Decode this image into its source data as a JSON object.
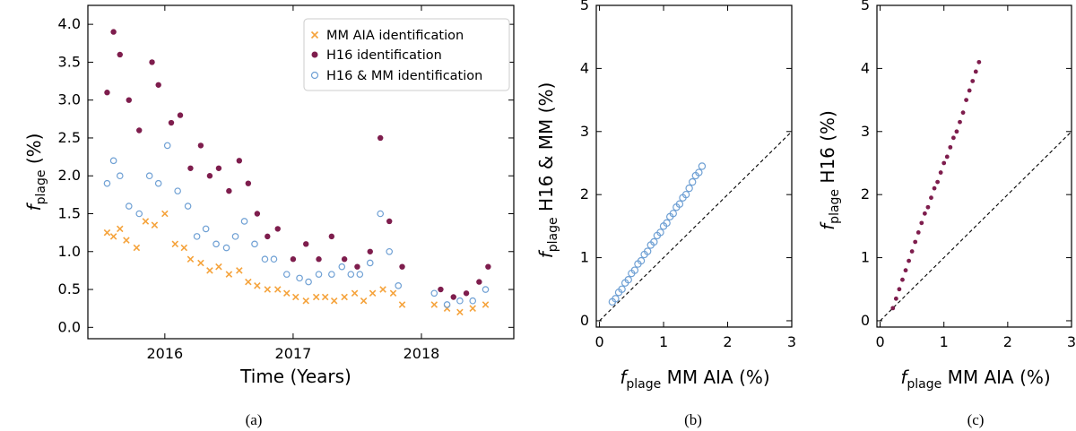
{
  "colors": {
    "orange": "#f5a33c",
    "purple": "#7e1d4d",
    "blue": "#6fa0d4"
  },
  "chart_data": [
    {
      "id": "a",
      "type": "scatter",
      "caption": "(a)",
      "ylabel_base": "f",
      "ylabel_sub": "plage",
      "ylabel_tail": " (%)",
      "xlabel": "Time (Years)",
      "xlim": [
        2015.4,
        2018.72
      ],
      "ylim": [
        -0.15,
        4.25
      ],
      "x_ticks": [
        {
          "value": 2016,
          "label": "2016"
        },
        {
          "value": 2017,
          "label": "2017"
        },
        {
          "value": 2018,
          "label": "2018"
        }
      ],
      "y_ticks": [
        {
          "value": 0.0,
          "label": "0.0"
        },
        {
          "value": 0.5,
          "label": "0.5"
        },
        {
          "value": 1.0,
          "label": "1.0"
        },
        {
          "value": 1.5,
          "label": "1.5"
        },
        {
          "value": 2.0,
          "label": "2.0"
        },
        {
          "value": 2.5,
          "label": "2.5"
        },
        {
          "value": 3.0,
          "label": "3.0"
        },
        {
          "value": 3.5,
          "label": "3.5"
        },
        {
          "value": 4.0,
          "label": "4.0"
        }
      ],
      "legend": [
        {
          "label": "MM AIA identification",
          "marker": "x",
          "color": "#f5a33c"
        },
        {
          "label": "H16 identification",
          "marker": "dot",
          "color": "#7e1d4d"
        },
        {
          "label": "H16 & MM identification",
          "marker": "circle",
          "color": "#6fa0d4"
        }
      ],
      "series": [
        {
          "name": "MM AIA identification",
          "marker": "x",
          "color": "#f5a33c",
          "x": [
            2015.55,
            2015.6,
            2015.65,
            2015.7,
            2015.78,
            2015.85,
            2015.92,
            2016.0,
            2016.08,
            2016.15,
            2016.2,
            2016.28,
            2016.35,
            2016.42,
            2016.5,
            2016.58,
            2016.65,
            2016.72,
            2016.8,
            2016.88,
            2016.95,
            2017.02,
            2017.1,
            2017.18,
            2017.25,
            2017.32,
            2017.4,
            2017.48,
            2017.55,
            2017.62,
            2017.7,
            2017.78,
            2017.85,
            2018.1,
            2018.2,
            2018.3,
            2018.4,
            2018.5
          ],
          "y": [
            1.25,
            1.2,
            1.3,
            1.15,
            1.05,
            1.4,
            1.35,
            1.5,
            1.1,
            1.05,
            0.9,
            0.85,
            0.75,
            0.8,
            0.7,
            0.75,
            0.6,
            0.55,
            0.5,
            0.5,
            0.45,
            0.4,
            0.35,
            0.4,
            0.4,
            0.35,
            0.4,
            0.45,
            0.35,
            0.45,
            0.5,
            0.45,
            0.3,
            0.3,
            0.25,
            0.2,
            0.25,
            0.3
          ]
        },
        {
          "name": "H16 identification",
          "marker": "dot",
          "color": "#7e1d4d",
          "x": [
            2015.55,
            2015.6,
            2015.65,
            2015.72,
            2015.8,
            2015.9,
            2015.95,
            2016.05,
            2016.12,
            2016.2,
            2016.28,
            2016.35,
            2016.42,
            2016.5,
            2016.58,
            2016.65,
            2016.72,
            2016.8,
            2016.88,
            2017.0,
            2017.1,
            2017.2,
            2017.3,
            2017.4,
            2017.5,
            2017.6,
            2017.68,
            2017.75,
            2017.85,
            2018.15,
            2018.25,
            2018.35,
            2018.45,
            2018.52
          ],
          "y": [
            3.1,
            3.9,
            3.6,
            3.0,
            2.6,
            3.5,
            3.2,
            2.7,
            2.8,
            2.1,
            2.4,
            2.0,
            2.1,
            1.8,
            2.2,
            1.9,
            1.5,
            1.2,
            1.3,
            0.9,
            1.1,
            0.9,
            1.2,
            0.9,
            0.8,
            1.0,
            2.5,
            1.4,
            0.8,
            0.5,
            0.4,
            0.45,
            0.6,
            0.8
          ]
        },
        {
          "name": "H16 & MM identification",
          "marker": "circle",
          "color": "#6fa0d4",
          "x": [
            2015.55,
            2015.6,
            2015.65,
            2015.72,
            2015.8,
            2015.88,
            2015.95,
            2016.02,
            2016.1,
            2016.18,
            2016.25,
            2016.32,
            2016.4,
            2016.48,
            2016.55,
            2016.62,
            2016.7,
            2016.78,
            2016.85,
            2016.95,
            2017.05,
            2017.12,
            2017.2,
            2017.3,
            2017.38,
            2017.45,
            2017.52,
            2017.6,
            2017.68,
            2017.75,
            2017.82,
            2018.1,
            2018.2,
            2018.3,
            2018.4,
            2018.5
          ],
          "y": [
            1.9,
            2.2,
            2.0,
            1.6,
            1.5,
            2.0,
            1.9,
            2.4,
            1.8,
            1.6,
            1.2,
            1.3,
            1.1,
            1.05,
            1.2,
            1.4,
            1.1,
            0.9,
            0.9,
            0.7,
            0.65,
            0.6,
            0.7,
            0.7,
            0.8,
            0.7,
            0.7,
            0.85,
            1.5,
            1.0,
            0.55,
            0.45,
            0.3,
            0.35,
            0.35,
            0.5
          ]
        }
      ]
    },
    {
      "id": "b",
      "type": "scatter",
      "caption": "(b)",
      "ylabel_base": "f",
      "ylabel_sub": "plage",
      "ylabel_tail": " H16 & MM (%)",
      "xlabel_base": "f",
      "xlabel_sub": "plage",
      "xlabel_tail": " MM AIA (%)",
      "xlim": [
        -0.05,
        3
      ],
      "ylim": [
        -0.1,
        5
      ],
      "x_ticks": [
        {
          "value": 0,
          "label": "0"
        },
        {
          "value": 1,
          "label": "1"
        },
        {
          "value": 2,
          "label": "2"
        },
        {
          "value": 3,
          "label": "3"
        }
      ],
      "y_ticks": [
        {
          "value": 0,
          "label": "0"
        },
        {
          "value": 1,
          "label": "1"
        },
        {
          "value": 2,
          "label": "2"
        },
        {
          "value": 3,
          "label": "3"
        },
        {
          "value": 4,
          "label": "4"
        },
        {
          "value": 5,
          "label": "5"
        }
      ],
      "reference_line": {
        "x": [
          0,
          3
        ],
        "y": [
          0,
          3
        ],
        "style": "dashed"
      },
      "series": [
        {
          "name": "H16 & MM identification",
          "marker": "circle",
          "color": "#6fa0d4",
          "x": [
            0.2,
            0.25,
            0.3,
            0.35,
            0.4,
            0.45,
            0.5,
            0.55,
            0.6,
            0.65,
            0.7,
            0.75,
            0.8,
            0.85,
            0.9,
            0.95,
            1.0,
            1.05,
            1.1,
            1.15,
            1.2,
            1.25,
            1.3,
            1.35,
            1.4,
            1.45,
            1.5,
            1.55,
            1.6
          ],
          "y": [
            0.3,
            0.35,
            0.45,
            0.5,
            0.6,
            0.65,
            0.75,
            0.8,
            0.9,
            0.95,
            1.05,
            1.1,
            1.2,
            1.25,
            1.35,
            1.4,
            1.5,
            1.55,
            1.65,
            1.7,
            1.8,
            1.85,
            1.95,
            2.0,
            2.1,
            2.2,
            2.3,
            2.35,
            2.45
          ]
        }
      ]
    },
    {
      "id": "c",
      "type": "scatter",
      "caption": "(c)",
      "ylabel_base": "f",
      "ylabel_sub": "plage",
      "ylabel_tail": " H16 (%)",
      "xlabel_base": "f",
      "xlabel_sub": "plage",
      "xlabel_tail": " MM AIA (%)",
      "xlim": [
        -0.05,
        3
      ],
      "ylim": [
        -0.1,
        5
      ],
      "x_ticks": [
        {
          "value": 0,
          "label": "0"
        },
        {
          "value": 1,
          "label": "1"
        },
        {
          "value": 2,
          "label": "2"
        },
        {
          "value": 3,
          "label": "3"
        }
      ],
      "y_ticks": [
        {
          "value": 0,
          "label": "0"
        },
        {
          "value": 1,
          "label": "1"
        },
        {
          "value": 2,
          "label": "2"
        },
        {
          "value": 3,
          "label": "3"
        },
        {
          "value": 4,
          "label": "4"
        },
        {
          "value": 5,
          "label": "5"
        }
      ],
      "reference_line": {
        "x": [
          0,
          3
        ],
        "y": [
          0,
          3
        ],
        "style": "dashed"
      },
      "series": [
        {
          "name": "H16 identification",
          "marker": "dot",
          "color": "#7e1d4d",
          "x": [
            0.2,
            0.25,
            0.3,
            0.35,
            0.4,
            0.45,
            0.5,
            0.55,
            0.6,
            0.65,
            0.7,
            0.75,
            0.8,
            0.85,
            0.9,
            0.95,
            1.0,
            1.05,
            1.1,
            1.15,
            1.2,
            1.25,
            1.3,
            1.35,
            1.4,
            1.45,
            1.5,
            1.55
          ],
          "y": [
            0.2,
            0.35,
            0.5,
            0.65,
            0.8,
            0.95,
            1.1,
            1.25,
            1.4,
            1.55,
            1.7,
            1.8,
            1.95,
            2.1,
            2.2,
            2.35,
            2.5,
            2.6,
            2.75,
            2.9,
            3.0,
            3.15,
            3.3,
            3.5,
            3.65,
            3.8,
            3.95,
            4.1
          ]
        }
      ]
    }
  ]
}
